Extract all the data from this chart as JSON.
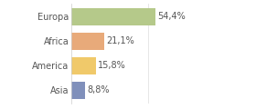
{
  "categories": [
    "Europa",
    "Africa",
    "America",
    "Asia"
  ],
  "values": [
    54.4,
    21.1,
    15.8,
    8.8
  ],
  "labels": [
    "54,4%",
    "21,1%",
    "15,8%",
    "8,8%"
  ],
  "bar_colors": [
    "#b5c98a",
    "#e8aa7a",
    "#f0c96a",
    "#8090bb"
  ],
  "background_color": "#ffffff",
  "plot_bg_color": "#ffffff",
  "xlim": [
    0,
    100
  ],
  "label_fontsize": 7.0,
  "tick_fontsize": 7.0,
  "bar_height": 0.72
}
